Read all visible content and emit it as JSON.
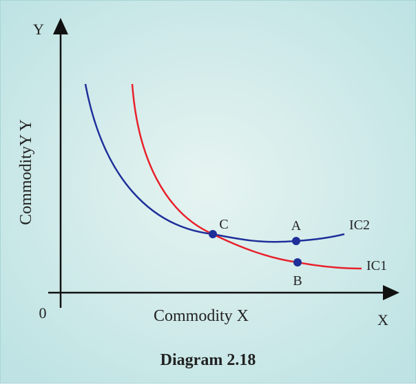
{
  "axes": {
    "y_label": "Y",
    "x_label": "X",
    "origin": "0",
    "x_title": "Commodity X",
    "y_title": "CommodityY Y"
  },
  "curves": [
    {
      "label": "IC2"
    },
    {
      "label": "IC1"
    }
  ],
  "points": [
    {
      "label": "C"
    },
    {
      "label": "A"
    },
    {
      "label": "B"
    }
  ],
  "caption": "Diagram 2.18"
}
